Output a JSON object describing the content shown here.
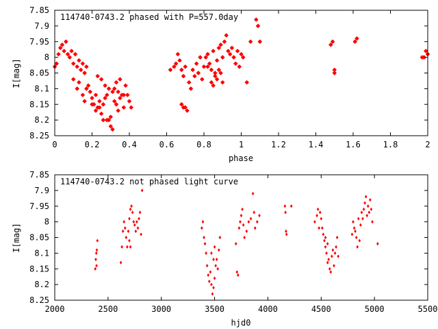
{
  "chart_data": [
    {
      "type": "scatter",
      "title": "114740-0743.2 phased with P=557.0day",
      "xlabel": "phase",
      "ylabel": "I[mag]",
      "xlim": [
        0,
        2
      ],
      "ylim": [
        8.25,
        7.85
      ],
      "y_inverted": true,
      "x_ticks": [
        "0",
        "0.2",
        "0.4",
        "0.6",
        "0.8",
        "1",
        "1.2",
        "1.4",
        "1.6",
        "1.8",
        "2"
      ],
      "x_tick_values": [
        0,
        0.2,
        0.4,
        0.6,
        0.8,
        1.0,
        1.2,
        1.4,
        1.6,
        1.8,
        2.0
      ],
      "y_ticks": [
        "7.85",
        "7.9",
        "7.95",
        "8",
        "8.05",
        "8.1",
        "8.15",
        "8.2",
        "8.25"
      ],
      "y_tick_values": [
        7.85,
        7.9,
        7.95,
        8.0,
        8.05,
        8.1,
        8.15,
        8.2,
        8.25
      ],
      "marker_color": "#ff0000",
      "marker": "star",
      "points": [
        [
          0.0,
          8.03
        ],
        [
          0.01,
          8.02
        ],
        [
          0.02,
          7.99
        ],
        [
          0.03,
          7.97
        ],
        [
          0.04,
          7.96
        ],
        [
          0.05,
          7.98
        ],
        [
          0.06,
          7.95
        ],
        [
          0.07,
          7.99
        ],
        [
          0.08,
          8.0
        ],
        [
          0.09,
          7.98
        ],
        [
          0.1,
          8.02
        ],
        [
          0.11,
          7.99
        ],
        [
          0.12,
          8.03
        ],
        [
          0.13,
          8.01
        ],
        [
          0.14,
          8.04
        ],
        [
          0.15,
          8.02
        ],
        [
          0.16,
          8.05
        ],
        [
          0.17,
          8.03
        ],
        [
          0.1,
          8.07
        ],
        [
          0.12,
          8.1
        ],
        [
          0.13,
          8.08
        ],
        [
          0.15,
          8.12
        ],
        [
          0.16,
          8.14
        ],
        [
          0.17,
          8.1
        ],
        [
          0.18,
          8.09
        ],
        [
          0.19,
          8.11
        ],
        [
          0.2,
          8.13
        ],
        [
          0.21,
          8.15
        ],
        [
          0.22,
          8.17
        ],
        [
          0.23,
          8.16
        ],
        [
          0.24,
          8.14
        ],
        [
          0.25,
          8.18
        ],
        [
          0.26,
          8.2
        ],
        [
          0.27,
          8.13
        ],
        [
          0.28,
          8.12
        ],
        [
          0.29,
          8.2
        ],
        [
          0.3,
          8.22
        ],
        [
          0.31,
          8.23
        ],
        [
          0.32,
          8.1
        ],
        [
          0.33,
          8.15
        ],
        [
          0.34,
          8.11
        ],
        [
          0.35,
          8.13
        ],
        [
          0.36,
          8.12
        ],
        [
          0.37,
          8.16
        ],
        [
          0.38,
          8.09
        ],
        [
          0.39,
          8.12
        ],
        [
          0.4,
          8.14
        ],
        [
          0.41,
          8.16
        ],
        [
          0.23,
          8.06
        ],
        [
          0.25,
          8.07
        ],
        [
          0.27,
          8.09
        ],
        [
          0.29,
          8.1
        ],
        [
          0.31,
          8.11
        ],
        [
          0.33,
          8.08
        ],
        [
          0.35,
          8.07
        ],
        [
          0.37,
          8.12
        ],
        [
          0.28,
          8.2
        ],
        [
          0.3,
          8.19
        ],
        [
          0.32,
          8.14
        ],
        [
          0.34,
          8.17
        ],
        [
          0.26,
          8.15
        ],
        [
          0.24,
          8.16
        ],
        [
          0.2,
          8.15
        ],
        [
          0.22,
          8.12
        ],
        [
          0.62,
          8.04
        ],
        [
          0.64,
          8.03
        ],
        [
          0.65,
          8.02
        ],
        [
          0.66,
          7.99
        ],
        [
          0.67,
          8.01
        ],
        [
          0.68,
          8.04
        ],
        [
          0.69,
          8.06
        ],
        [
          0.7,
          8.03
        ],
        [
          0.68,
          8.15
        ],
        [
          0.69,
          8.16
        ],
        [
          0.7,
          8.16
        ],
        [
          0.71,
          8.17
        ],
        [
          0.72,
          8.08
        ],
        [
          0.73,
          8.1
        ],
        [
          0.74,
          8.04
        ],
        [
          0.75,
          8.06
        ],
        [
          0.76,
          8.02
        ],
        [
          0.77,
          8.05
        ],
        [
          0.78,
          8.0
        ],
        [
          0.79,
          8.07
        ],
        [
          0.8,
          8.03
        ],
        [
          0.81,
          8.0
        ],
        [
          0.82,
          7.99
        ],
        [
          0.83,
          8.02
        ],
        [
          0.84,
          8.04
        ],
        [
          0.85,
          7.98
        ],
        [
          0.86,
          8.05
        ],
        [
          0.87,
          8.01
        ],
        [
          0.88,
          7.97
        ],
        [
          0.89,
          7.96
        ],
        [
          0.9,
          8.0
        ],
        [
          0.91,
          7.95
        ],
        [
          0.92,
          7.93
        ],
        [
          0.93,
          7.98
        ],
        [
          0.94,
          7.99
        ],
        [
          0.95,
          7.97
        ],
        [
          0.96,
          8.0
        ],
        [
          0.97,
          8.02
        ],
        [
          0.98,
          7.98
        ],
        [
          0.99,
          8.03
        ],
        [
          0.84,
          8.08
        ],
        [
          0.85,
          8.09
        ],
        [
          0.86,
          8.06
        ],
        [
          0.87,
          8.07
        ],
        [
          0.88,
          8.04
        ],
        [
          0.89,
          8.05
        ],
        [
          0.9,
          8.08
        ],
        [
          0.82,
          8.03
        ],
        [
          1.0,
          7.99
        ],
        [
          1.01,
          8.0
        ],
        [
          1.03,
          8.08
        ],
        [
          1.05,
          7.95
        ],
        [
          1.08,
          7.88
        ],
        [
          1.09,
          7.9
        ],
        [
          1.1,
          7.95
        ],
        [
          1.48,
          7.96
        ],
        [
          1.49,
          7.95
        ],
        [
          1.5,
          8.04
        ],
        [
          1.5,
          8.05
        ],
        [
          1.61,
          7.95
        ],
        [
          1.62,
          7.94
        ],
        [
          1.97,
          8.0
        ],
        [
          1.98,
          8.0
        ],
        [
          1.99,
          7.98
        ],
        [
          2.0,
          7.99
        ]
      ]
    },
    {
      "type": "scatter",
      "title": "114740-0743.2 not phased light curve",
      "xlabel": "hjd0",
      "ylabel": "I[mag]",
      "xlim": [
        2000,
        5500
      ],
      "ylim": [
        8.25,
        7.85
      ],
      "y_inverted": true,
      "x_ticks": [
        "2000",
        "2500",
        "3000",
        "3500",
        "4000",
        "4500",
        "5000",
        "5500"
      ],
      "x_tick_values": [
        2000,
        2500,
        3000,
        3500,
        4000,
        4500,
        5000,
        5500
      ],
      "y_ticks": [
        "7.85",
        "7.9",
        "7.95",
        "8",
        "8.05",
        "8.1",
        "8.15",
        "8.2",
        "8.25"
      ],
      "y_tick_values": [
        7.85,
        7.9,
        7.95,
        8.0,
        8.05,
        8.1,
        8.15,
        8.2,
        8.25
      ],
      "marker_color": "#ff0000",
      "marker": "diamond",
      "points": [
        [
          2380,
          8.15
        ],
        [
          2385,
          8.12
        ],
        [
          2390,
          8.1
        ],
        [
          2392,
          8.14
        ],
        [
          2395,
          8.09
        ],
        [
          2400,
          8.06
        ],
        [
          2620,
          8.13
        ],
        [
          2630,
          8.08
        ],
        [
          2640,
          8.03
        ],
        [
          2650,
          8.0
        ],
        [
          2660,
          8.02
        ],
        [
          2670,
          8.05
        ],
        [
          2680,
          8.08
        ],
        [
          2690,
          8.03
        ],
        [
          2700,
          7.99
        ],
        [
          2710,
          7.96
        ],
        [
          2720,
          7.95
        ],
        [
          2730,
          7.97
        ],
        [
          2740,
          8.0
        ],
        [
          2750,
          8.01
        ],
        [
          2760,
          8.03
        ],
        [
          2770,
          8.0
        ],
        [
          2780,
          8.02
        ],
        [
          2790,
          7.99
        ],
        [
          2800,
          7.97
        ],
        [
          2810,
          8.04
        ],
        [
          2820,
          7.9
        ],
        [
          2700,
          8.06
        ],
        [
          2710,
          8.08
        ],
        [
          3380,
          8.02
        ],
        [
          3390,
          8.0
        ],
        [
          3400,
          8.05
        ],
        [
          3410,
          8.07
        ],
        [
          3420,
          8.1
        ],
        [
          3430,
          8.14
        ],
        [
          3440,
          8.17
        ],
        [
          3450,
          8.19
        ],
        [
          3460,
          8.16
        ],
        [
          3470,
          8.2
        ],
        [
          3480,
          8.23
        ],
        [
          3490,
          8.21
        ],
        [
          3500,
          8.18
        ],
        [
          3510,
          8.14
        ],
        [
          3520,
          8.12
        ],
        [
          3530,
          8.15
        ],
        [
          3540,
          8.09
        ],
        [
          3550,
          8.05
        ],
        [
          3470,
          8.1
        ],
        [
          3490,
          8.12
        ],
        [
          3500,
          8.08
        ],
        [
          3700,
          8.07
        ],
        [
          3710,
          8.16
        ],
        [
          3720,
          8.17
        ],
        [
          3730,
          8.02
        ],
        [
          3740,
          8.0
        ],
        [
          3750,
          7.98
        ],
        [
          3760,
          7.96
        ],
        [
          3770,
          8.01
        ],
        [
          3780,
          8.05
        ],
        [
          3800,
          8.03
        ],
        [
          3820,
          8.0
        ],
        [
          3840,
          7.99
        ],
        [
          3860,
          7.91
        ],
        [
          3870,
          7.97
        ],
        [
          3880,
          8.02
        ],
        [
          3900,
          8.0
        ],
        [
          3920,
          7.98
        ],
        [
          4160,
          7.95
        ],
        [
          4165,
          7.97
        ],
        [
          4170,
          8.03
        ],
        [
          4175,
          8.04
        ],
        [
          4220,
          7.95
        ],
        [
          4440,
          8.0
        ],
        [
          4460,
          7.98
        ],
        [
          4470,
          7.96
        ],
        [
          4480,
          8.02
        ],
        [
          4490,
          7.97
        ],
        [
          4500,
          7.99
        ],
        [
          4510,
          8.02
        ],
        [
          4520,
          8.04
        ],
        [
          4530,
          8.06
        ],
        [
          4540,
          8.08
        ],
        [
          4550,
          8.1
        ],
        [
          4560,
          8.13
        ],
        [
          4570,
          8.12
        ],
        [
          4580,
          8.15
        ],
        [
          4590,
          8.16
        ],
        [
          4600,
          8.11
        ],
        [
          4610,
          8.09
        ],
        [
          4620,
          8.14
        ],
        [
          4630,
          8.1
        ],
        [
          4640,
          8.08
        ],
        [
          4650,
          8.05
        ],
        [
          4660,
          8.11
        ],
        [
          4540,
          8.05
        ],
        [
          4560,
          8.07
        ],
        [
          4790,
          8.04
        ],
        [
          4800,
          8.0
        ],
        [
          4810,
          8.02
        ],
        [
          4820,
          8.03
        ],
        [
          4830,
          8.05
        ],
        [
          4840,
          8.08
        ],
        [
          4850,
          7.99
        ],
        [
          4860,
          8.06
        ],
        [
          4870,
          8.01
        ],
        [
          4880,
          7.97
        ],
        [
          4890,
          7.99
        ],
        [
          4900,
          7.96
        ],
        [
          4910,
          7.94
        ],
        [
          4920,
          7.92
        ],
        [
          4930,
          7.98
        ],
        [
          4940,
          7.95
        ],
        [
          4950,
          7.97
        ],
        [
          4960,
          7.93
        ],
        [
          4970,
          7.96
        ],
        [
          4980,
          8.0
        ],
        [
          5030,
          8.07
        ]
      ]
    }
  ]
}
